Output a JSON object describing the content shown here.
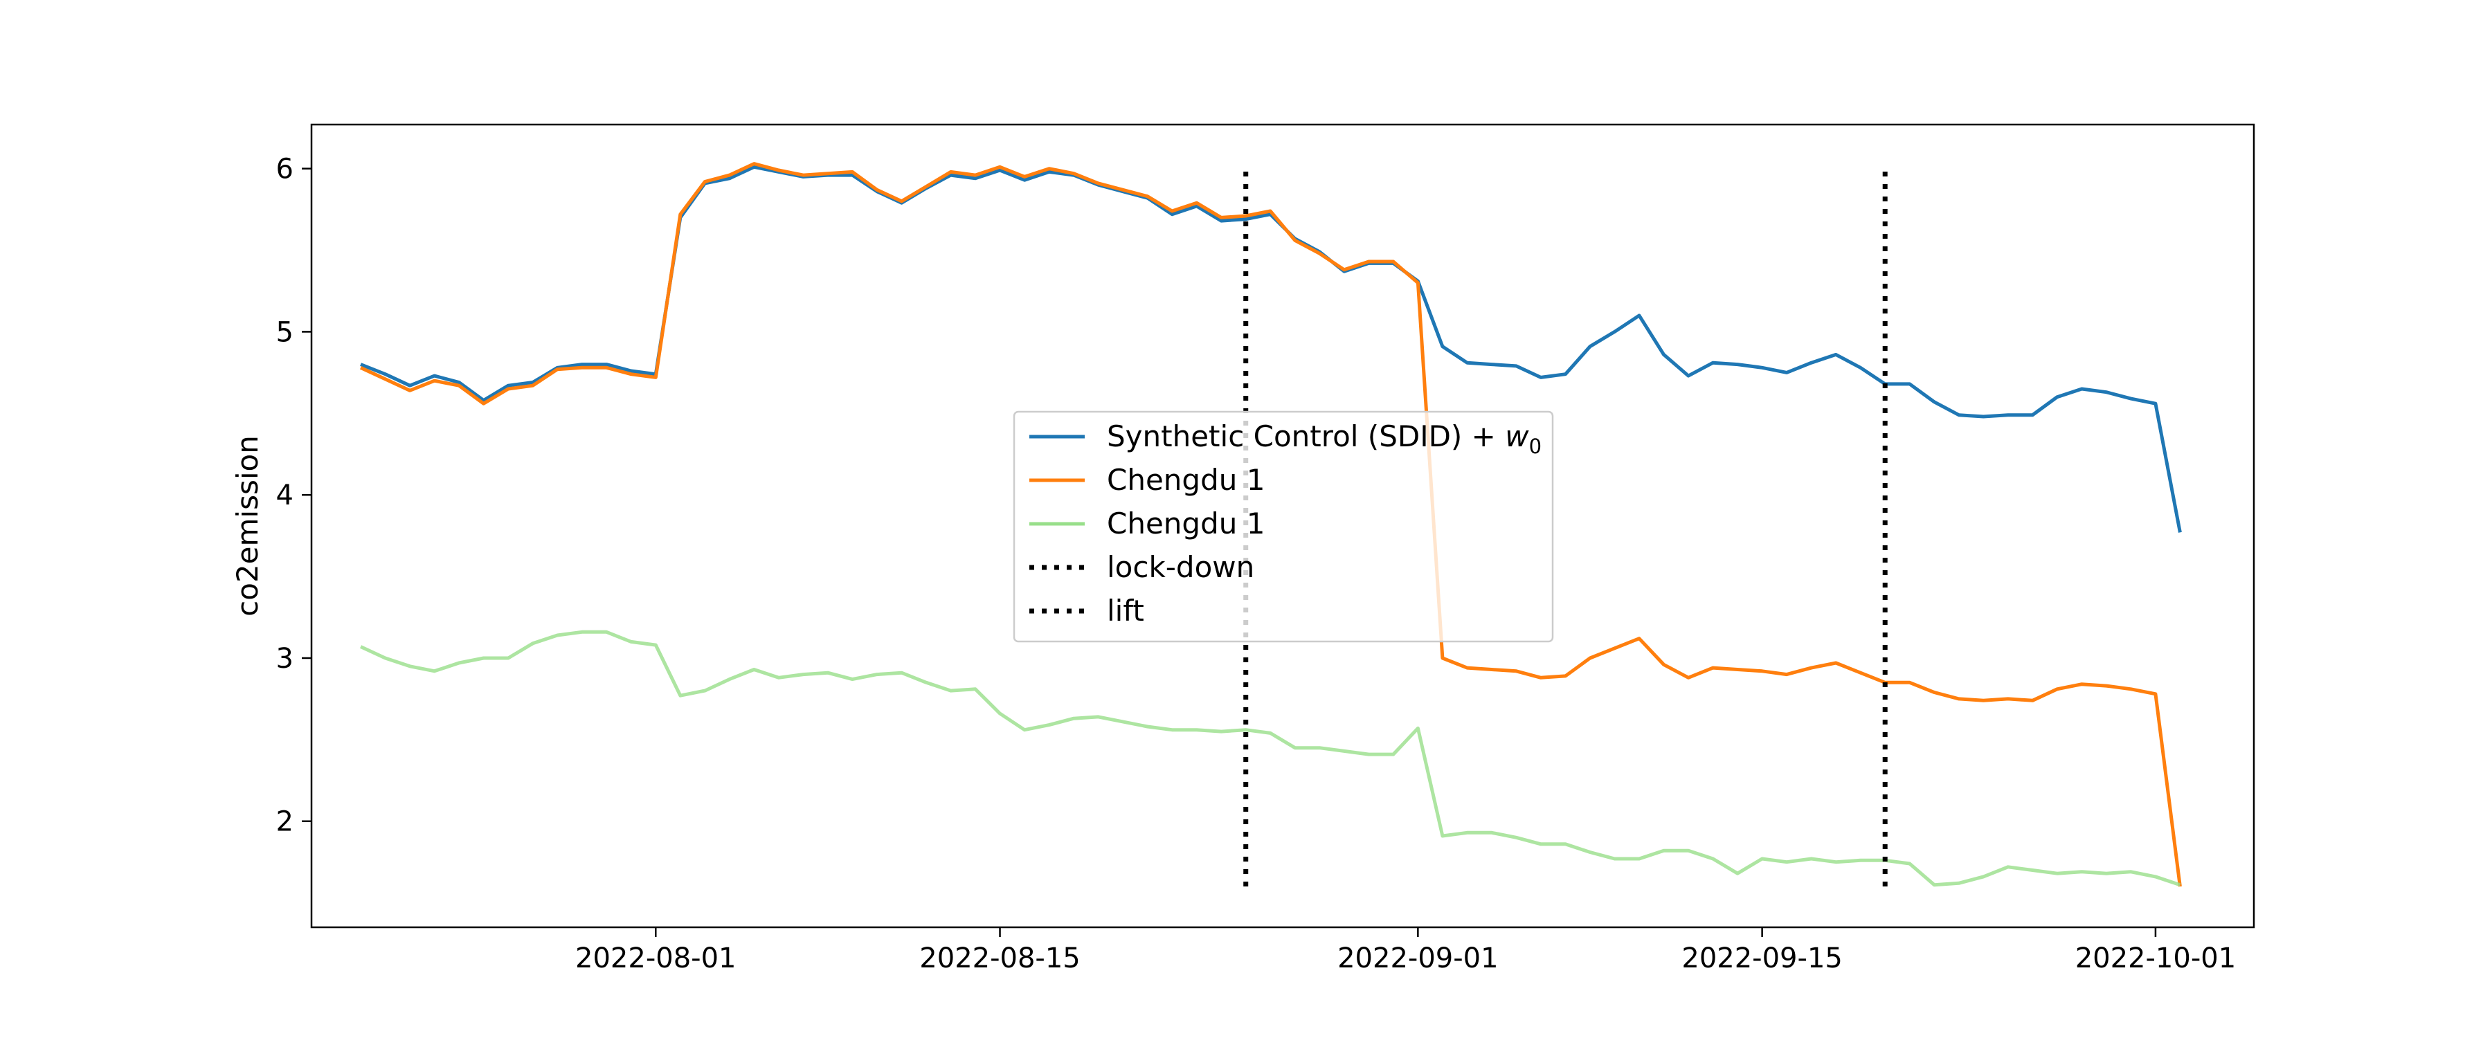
{
  "chart_data": {
    "type": "line",
    "title": "",
    "xlabel": "",
    "ylabel": "co2emission",
    "x_start": "2022-07-20",
    "xlim": [
      "2022-07-18",
      "2022-10-05"
    ],
    "ylim": [
      1.35,
      6.27
    ],
    "yticks": [
      2,
      3,
      4,
      5,
      6
    ],
    "ytick_labels": [
      "2",
      "3",
      "4",
      "5",
      "6"
    ],
    "xticks": [
      "2022-08-01",
      "2022-08-15",
      "2022-09-01",
      "2022-09-15",
      "2022-10-01"
    ],
    "grid": false,
    "legend_position": "center",
    "series": [
      {
        "name": "Synthetic Control (SDID) + w0",
        "color": "#1f77b4",
        "alpha": 1.0,
        "values": [
          4.8,
          4.74,
          4.67,
          4.73,
          4.69,
          4.58,
          4.67,
          4.69,
          4.78,
          4.8,
          4.8,
          4.76,
          4.74,
          5.7,
          5.91,
          5.94,
          6.01,
          5.98,
          5.95,
          5.96,
          5.96,
          5.86,
          5.79,
          5.88,
          5.96,
          5.94,
          5.99,
          5.93,
          5.98,
          5.96,
          5.9,
          5.86,
          5.82,
          5.72,
          5.77,
          5.68,
          5.69,
          5.72,
          5.57,
          5.49,
          5.37,
          5.42,
          5.42,
          5.31,
          4.91,
          4.81,
          4.8,
          4.79,
          4.72,
          4.74,
          4.91,
          5.0,
          5.1,
          4.86,
          4.73,
          4.81,
          4.8,
          4.78,
          4.75,
          4.81,
          4.86,
          4.78,
          4.68,
          4.68,
          4.57,
          4.49,
          4.48,
          4.49,
          4.49,
          4.6,
          4.65,
          4.63,
          4.59,
          4.56,
          3.77
        ]
      },
      {
        "name": "Chengdu 1",
        "color": "#ff7f0e",
        "alpha": 1.0,
        "values": [
          4.78,
          4.71,
          4.64,
          4.7,
          4.67,
          4.56,
          4.65,
          4.67,
          4.77,
          4.78,
          4.78,
          4.74,
          4.72,
          5.72,
          5.92,
          5.96,
          6.03,
          5.99,
          5.96,
          5.97,
          5.98,
          5.87,
          5.8,
          5.89,
          5.98,
          5.96,
          6.01,
          5.95,
          6.0,
          5.97,
          5.91,
          5.87,
          5.83,
          5.74,
          5.79,
          5.7,
          5.71,
          5.74,
          5.56,
          5.48,
          5.38,
          5.43,
          5.43,
          5.3,
          3.0,
          2.94,
          2.93,
          2.92,
          2.88,
          2.89,
          3.0,
          3.06,
          3.12,
          2.96,
          2.88,
          2.94,
          2.93,
          2.92,
          2.9,
          2.94,
          2.97,
          2.91,
          2.85,
          2.85,
          2.79,
          2.75,
          2.74,
          2.75,
          2.74,
          2.81,
          2.84,
          2.83,
          2.81,
          2.78,
          1.6
        ]
      },
      {
        "name": "Chengdu 1",
        "color": "#98df8a",
        "alpha": 0.8,
        "values": [
          3.07,
          3.0,
          2.95,
          2.92,
          2.97,
          3.0,
          3.0,
          3.09,
          3.14,
          3.16,
          3.16,
          3.1,
          3.08,
          2.77,
          2.8,
          2.87,
          2.93,
          2.88,
          2.9,
          2.91,
          2.87,
          2.9,
          2.91,
          2.85,
          2.8,
          2.81,
          2.66,
          2.56,
          2.59,
          2.63,
          2.64,
          2.61,
          2.58,
          2.56,
          2.56,
          2.55,
          2.56,
          2.54,
          2.45,
          2.45,
          2.43,
          2.41,
          2.41,
          2.57,
          1.91,
          1.93,
          1.93,
          1.9,
          1.86,
          1.86,
          1.81,
          1.77,
          1.77,
          1.82,
          1.82,
          1.77,
          1.68,
          1.77,
          1.75,
          1.77,
          1.75,
          1.76,
          1.76,
          1.74,
          1.61,
          1.62,
          1.66,
          1.72,
          1.7,
          1.68,
          1.69,
          1.68,
          1.69,
          1.66,
          1.61
        ]
      }
    ],
    "vlines": [
      {
        "name": "lock-down",
        "x": "2022-08-25",
        "y_range": [
          1.6,
          6.02
        ],
        "color": "#000000"
      },
      {
        "name": "lift",
        "x": "2022-09-20",
        "y_range": [
          1.6,
          6.02
        ],
        "color": "#000000"
      }
    ],
    "legend": [
      {
        "label": "Synthetic Control (SDID) + ",
        "math": "w",
        "sub": "0",
        "color": "#1f77b4",
        "style": "solid"
      },
      {
        "label": "Chengdu 1",
        "color": "#ff7f0e",
        "style": "solid"
      },
      {
        "label": "Chengdu 1",
        "color": "#98df8a",
        "style": "solid"
      },
      {
        "label": "lock-down",
        "color": "#000000",
        "style": "dotted"
      },
      {
        "label": "lift",
        "color": "#000000",
        "style": "dotted"
      }
    ]
  }
}
